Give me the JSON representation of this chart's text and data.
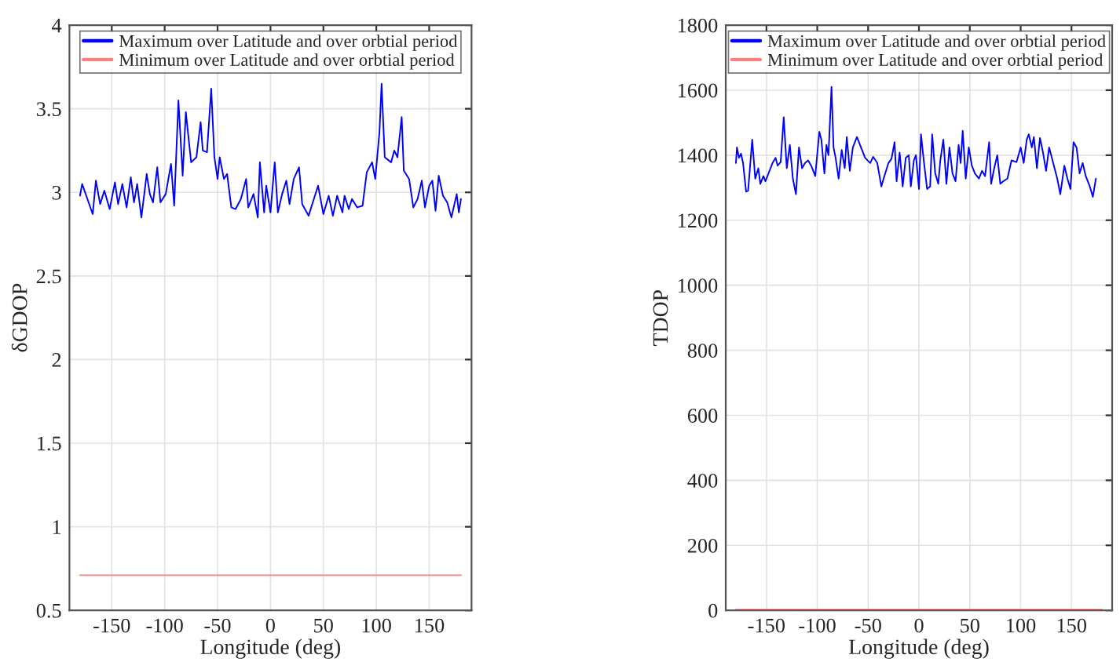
{
  "chart_data": [
    {
      "type": "line",
      "xlabel": "Longitude (deg)",
      "ylabel": "δGDOP",
      "xlim": [
        -190,
        190
      ],
      "ylim": [
        0.5,
        4
      ],
      "xticks": [
        -150,
        -100,
        -50,
        0,
        50,
        100,
        150
      ],
      "yticks": [
        0.5,
        1,
        1.5,
        2,
        2.5,
        3,
        3.5,
        4
      ],
      "grid": true,
      "legend": "top",
      "line_style": "solid",
      "marker": "none",
      "series": [
        {
          "name": "Maximum over Latitude and over orbtial period",
          "color": "#0000ff",
          "x": [
            -180,
            -178,
            -173,
            -168,
            -165,
            -161,
            -157,
            -152,
            -147,
            -144,
            -140,
            -136,
            -132,
            -129,
            -126,
            -122,
            -117,
            -114,
            -111,
            -107,
            -104,
            -99,
            -94,
            -91,
            -87,
            -83,
            -80,
            -75,
            -70,
            -66,
            -64,
            -60,
            -56,
            -53,
            -50,
            -48,
            -44,
            -41,
            -37,
            -33,
            -28,
            -23,
            -21,
            -16,
            -12,
            -10,
            -6,
            -4,
            0,
            4,
            7,
            11,
            15,
            18,
            22,
            27,
            30,
            36,
            41,
            45,
            50,
            55,
            59,
            63,
            68,
            70,
            74,
            77,
            82,
            87,
            91,
            96,
            99,
            103,
            105,
            108,
            114,
            117,
            120,
            124,
            126,
            131,
            135,
            139,
            143,
            146,
            150,
            153,
            156,
            159,
            163,
            167,
            171,
            176,
            178,
            180
          ],
          "values": [
            2.98,
            3.05,
            2.96,
            2.87,
            3.07,
            2.93,
            3.01,
            2.9,
            3.06,
            2.93,
            3.05,
            2.91,
            3.09,
            2.94,
            3.05,
            2.85,
            3.11,
            2.99,
            2.94,
            3.15,
            2.94,
            2.99,
            3.17,
            2.92,
            3.55,
            3.1,
            3.48,
            3.18,
            3.21,
            3.42,
            3.25,
            3.24,
            3.62,
            3.21,
            3.08,
            3.21,
            3.08,
            3.11,
            2.91,
            2.9,
            2.96,
            3.08,
            2.91,
            2.99,
            2.85,
            3.18,
            2.88,
            3.04,
            2.88,
            3.18,
            2.88,
            2.99,
            3.07,
            2.93,
            3.08,
            3.15,
            2.93,
            2.86,
            2.96,
            3.04,
            2.87,
            2.98,
            2.86,
            2.98,
            2.88,
            2.98,
            2.9,
            2.96,
            2.91,
            2.92,
            3.12,
            3.18,
            3.08,
            3.36,
            3.65,
            3.21,
            3.18,
            3.25,
            3.21,
            3.45,
            3.13,
            3.08,
            2.91,
            2.96,
            3.07,
            2.91,
            3.04,
            3.07,
            2.89,
            3.1,
            2.98,
            2.94,
            2.85,
            2.99,
            2.88,
            2.96
          ]
        },
        {
          "name": "Minimum over Latitude and over orbtial period",
          "color": "#ff7f7f",
          "x": [
            -180,
            180
          ],
          "values": [
            0.71,
            0.71
          ]
        }
      ]
    },
    {
      "type": "line",
      "xlabel": "Longitude (deg)",
      "ylabel": "TDOP",
      "xlim": [
        -190,
        190
      ],
      "ylim": [
        0,
        1800
      ],
      "xticks": [
        -150,
        -100,
        -50,
        0,
        50,
        100,
        150
      ],
      "yticks": [
        0,
        200,
        400,
        600,
        800,
        1000,
        1200,
        1400,
        1600,
        1800
      ],
      "grid": true,
      "legend": "top",
      "line_style": "solid",
      "marker": "none",
      "series": [
        {
          "name": "Maximum over Latitude and over orbtial period",
          "color": "#0000ff",
          "x": [
            -180,
            -179,
            -177,
            -175,
            -173,
            -170,
            -168,
            -164,
            -161,
            -158,
            -156,
            -153,
            -151,
            -147,
            -144,
            -141,
            -139,
            -136,
            -133,
            -130,
            -127,
            -124,
            -121,
            -118,
            -115,
            -112,
            -109,
            -106,
            -102,
            -98,
            -96,
            -93,
            -91,
            -89,
            -86,
            -84,
            -82,
            -79,
            -76,
            -73,
            -71,
            -68,
            -65,
            -61,
            -57,
            -53,
            -48,
            -45,
            -41,
            -37,
            -34,
            -30,
            -27,
            -24,
            -22,
            -19,
            -16,
            -13,
            -10,
            -8,
            -5,
            -3,
            0,
            2,
            5,
            8,
            11,
            13,
            16,
            19,
            21,
            24,
            27,
            30,
            33,
            36,
            39,
            41,
            43,
            46,
            49,
            52,
            55,
            59,
            62,
            65,
            69,
            71,
            74,
            77,
            80,
            83,
            87,
            91,
            96,
            100,
            103,
            106,
            108,
            111,
            113,
            116,
            119,
            122,
            125,
            128,
            132,
            136,
            139,
            143,
            146,
            149,
            152,
            155,
            158,
            161,
            164,
            168,
            171,
            174
          ],
          "values": [
            1376,
            1424,
            1392,
            1405,
            1376,
            1288,
            1291,
            1448,
            1328,
            1360,
            1312,
            1336,
            1320,
            1352,
            1376,
            1392,
            1368,
            1379,
            1517,
            1360,
            1432,
            1328,
            1280,
            1424,
            1360,
            1376,
            1384,
            1368,
            1336,
            1472,
            1448,
            1344,
            1432,
            1400,
            1610,
            1424,
            1392,
            1328,
            1416,
            1360,
            1456,
            1352,
            1424,
            1456,
            1424,
            1392,
            1376,
            1395,
            1376,
            1304,
            1336,
            1376,
            1389,
            1440,
            1320,
            1408,
            1304,
            1392,
            1400,
            1304,
            1384,
            1400,
            1296,
            1464,
            1376,
            1296,
            1304,
            1464,
            1344,
            1312,
            1384,
            1448,
            1312,
            1424,
            1344,
            1320,
            1432,
            1376,
            1475,
            1328,
            1424,
            1368,
            1344,
            1328,
            1352,
            1336,
            1440,
            1312,
            1360,
            1400,
            1312,
            1320,
            1328,
            1384,
            1379,
            1424,
            1376,
            1448,
            1464,
            1424,
            1456,
            1360,
            1453,
            1408,
            1352,
            1424,
            1376,
            1328,
            1280,
            1368,
            1328,
            1296,
            1440,
            1424,
            1344,
            1376,
            1336,
            1304,
            1272,
            1328
          ]
        },
        {
          "name": "Minimum over Latitude and over orbtial period",
          "color": "#ff7f7f",
          "x": [
            -180,
            180
          ],
          "values": [
            2,
            2
          ]
        }
      ]
    }
  ]
}
